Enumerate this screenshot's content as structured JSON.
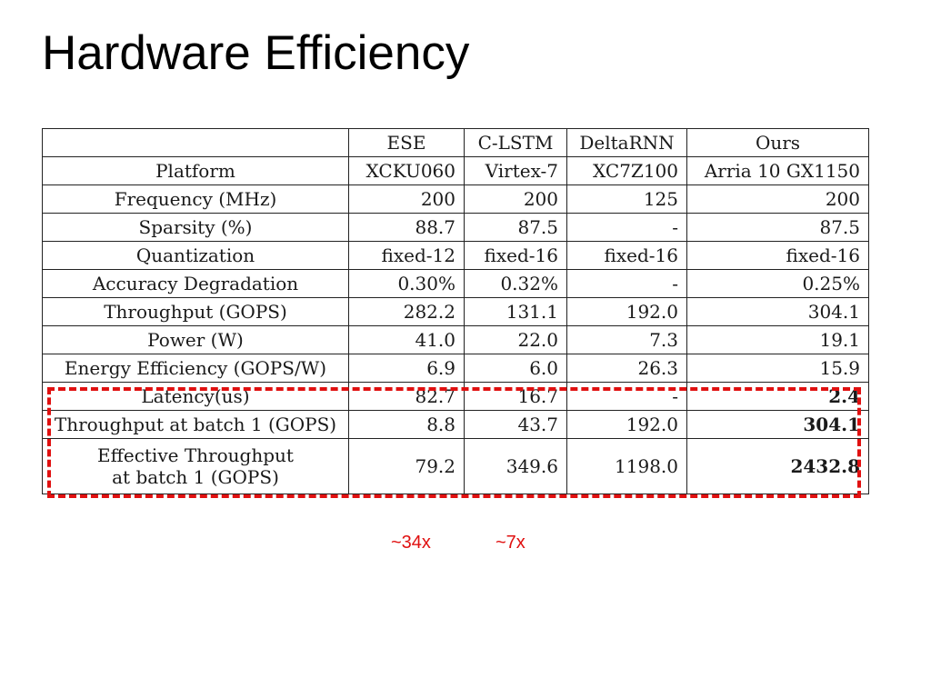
{
  "slide": {
    "title": "Hardware Efficiency"
  },
  "table": {
    "headers": [
      "",
      "ESE",
      "C-LSTM",
      "DeltaRNN",
      "Ours"
    ],
    "rows": [
      {
        "label": "Platform",
        "values": [
          "XCKU060",
          "Virtex-7",
          "XC7Z100",
          "Arria 10 GX1150"
        ]
      },
      {
        "label": "Frequency (MHz)",
        "values": [
          "200",
          "200",
          "125",
          "200"
        ]
      },
      {
        "label": "Sparsity (%)",
        "values": [
          "88.7",
          "87.5",
          "-",
          "87.5"
        ]
      },
      {
        "label": "Quantization",
        "values": [
          "fixed-12",
          "fixed-16",
          "fixed-16",
          "fixed-16"
        ]
      },
      {
        "label": "Accuracy Degradation",
        "values": [
          "0.30%",
          "0.32%",
          "-",
          "0.25%"
        ]
      },
      {
        "label": "Throughput (GOPS)",
        "values": [
          "282.2",
          "131.1",
          "192.0",
          "304.1"
        ]
      },
      {
        "label": "Power (W)",
        "values": [
          "41.0",
          "22.0",
          "7.3",
          "19.1"
        ]
      },
      {
        "label": "Energy Efficiency (GOPS/W)",
        "values": [
          "6.9",
          "6.0",
          "26.3",
          "15.9"
        ]
      },
      {
        "label": "Latency(us)",
        "values": [
          "82.7",
          "16.7",
          "-",
          "2.4"
        ]
      },
      {
        "label": "Throughput at batch 1 (GOPS)",
        "values": [
          "8.8",
          "43.7",
          "192.0",
          "304.1"
        ]
      },
      {
        "label_line1": "Effective Throughput",
        "label_line2": "at batch 1 (GOPS)",
        "values": [
          "79.2",
          "349.6",
          "1198.0",
          "2432.8"
        ]
      }
    ]
  },
  "annotations": {
    "speedup_vs_ese": "~34x",
    "speedup_vs_clstm": "~7x",
    "highlight_color": "#e01010"
  }
}
